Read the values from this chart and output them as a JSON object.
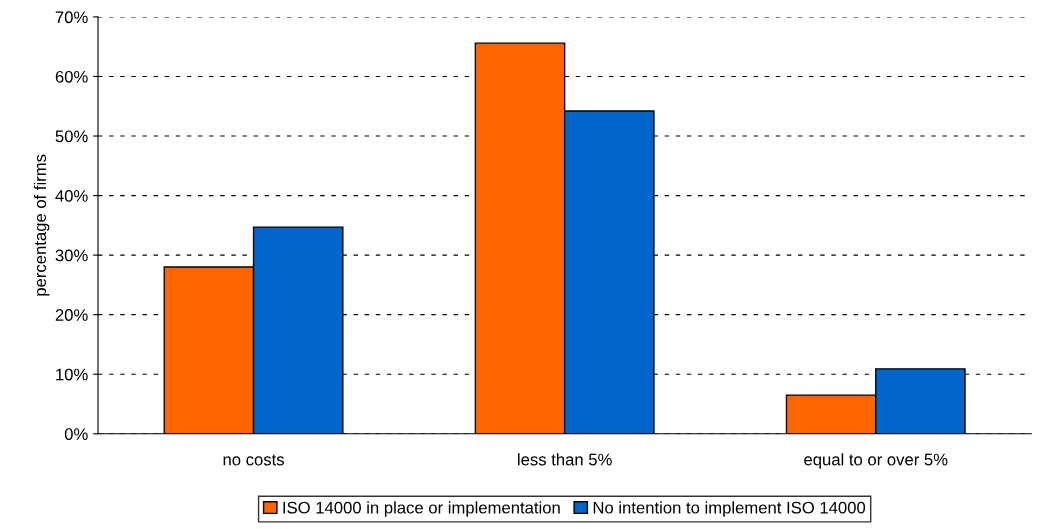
{
  "chart_data": {
    "type": "bar",
    "ylabel": "percentage of firms",
    "categories": [
      "no costs",
      "less than 5%",
      "equal to or over 5%"
    ],
    "series": [
      {
        "name": "ISO 14000 in place or implementation",
        "color": "#ff6600",
        "values": [
          28,
          65.6,
          6.5
        ]
      },
      {
        "name": "No intention to implement ISO 14000",
        "color": "#0066cc",
        "values": [
          34.7,
          54.2,
          10.9
        ]
      }
    ],
    "ylim": [
      0,
      70
    ],
    "yticks": [
      {
        "value": 0,
        "label": "0%"
      },
      {
        "value": 10,
        "label": "10%"
      },
      {
        "value": 20,
        "label": "20%"
      },
      {
        "value": 30,
        "label": "30%"
      },
      {
        "value": 40,
        "label": "40%"
      },
      {
        "value": 50,
        "label": "50%"
      },
      {
        "value": 60,
        "label": "60%"
      },
      {
        "value": 70,
        "label": "70%"
      }
    ],
    "grid": "y",
    "legend": "bottom"
  }
}
